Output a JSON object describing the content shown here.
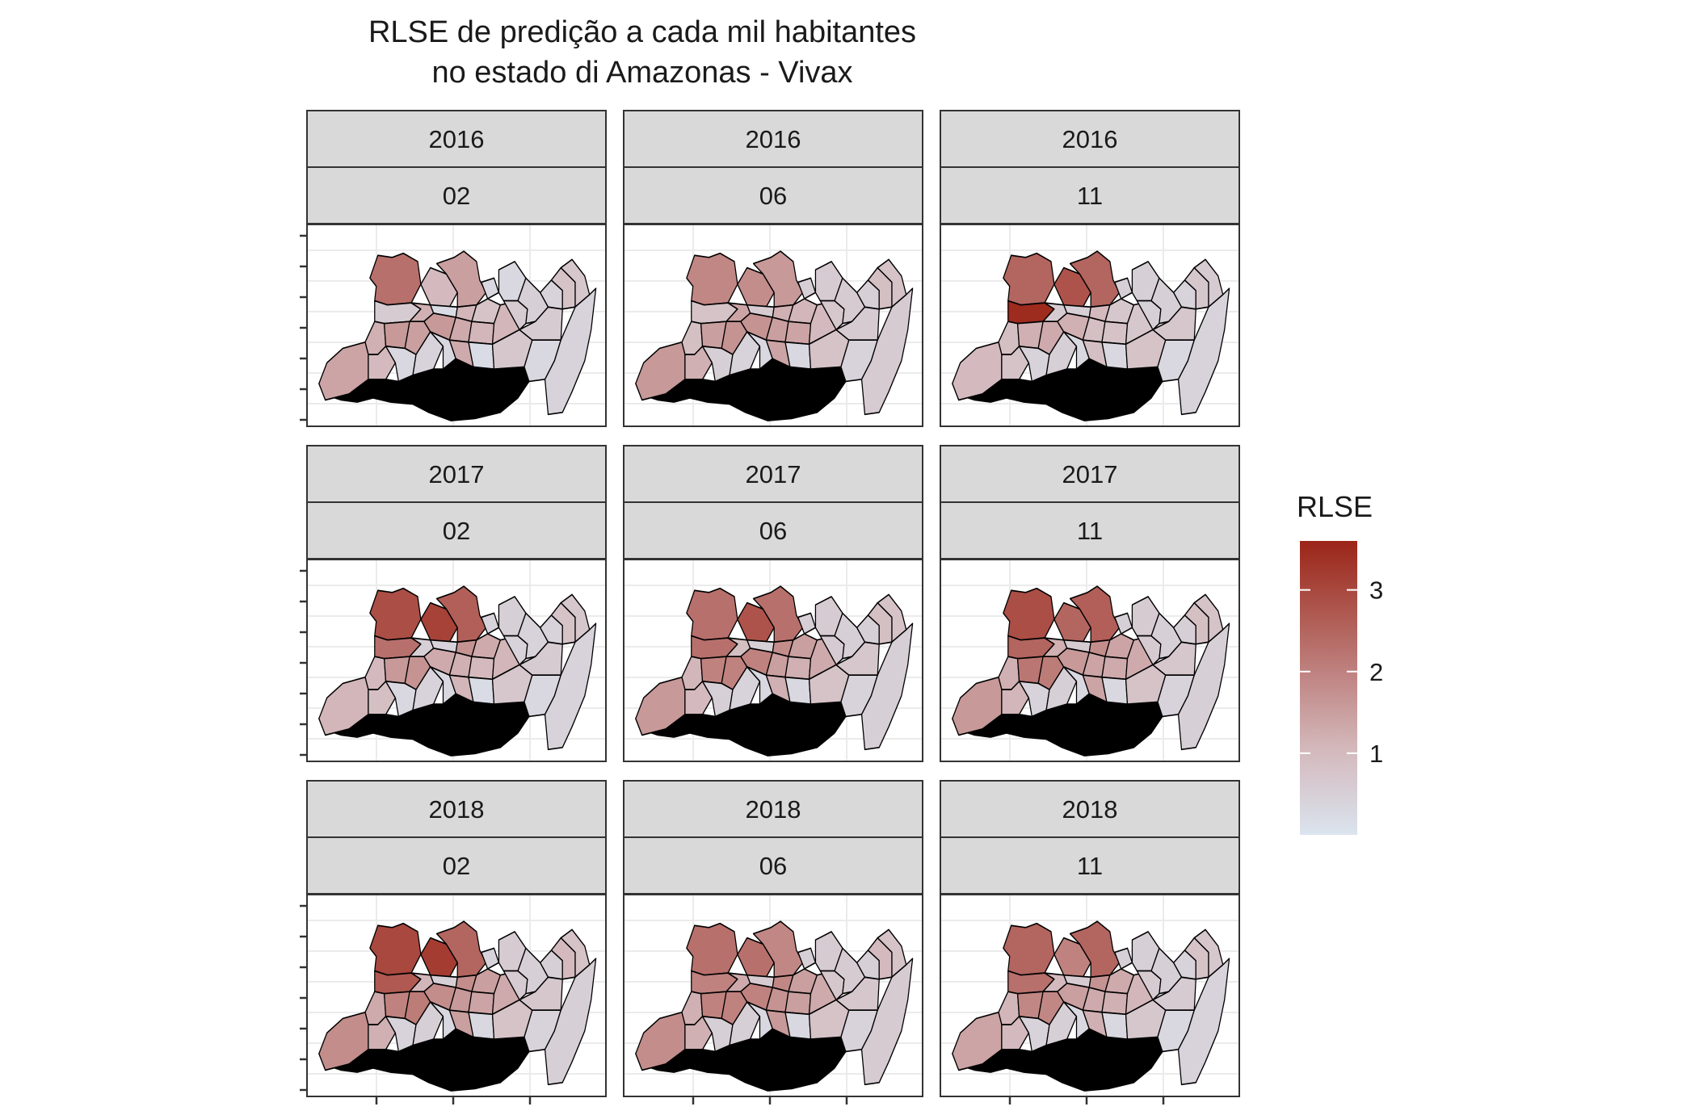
{
  "title_line1": "RLSE de predição a cada mil habitantes",
  "title_line2": "no estado di Amazonas - Vivax",
  "legend": {
    "title": "RLSE",
    "ticks": [
      {
        "value": 3,
        "label": "3"
      },
      {
        "value": 2,
        "label": "2"
      },
      {
        "value": 1,
        "label": "1"
      }
    ],
    "min": 0.0,
    "max": 3.6,
    "color_low": "#dbe4ef",
    "color_mid": "#d3b7ba",
    "color_high": "#9b2518"
  },
  "colors": {
    "strip_fill": "#d9d9d9",
    "strip_border": "#333333",
    "panel_border": "#333333",
    "grid": "#ebebeb",
    "region_border": "#000000"
  },
  "panels": [
    {
      "year": "2016",
      "month": "02",
      "values": [
        2.3,
        1.0,
        1.5,
        0.3,
        0.3,
        0.6,
        1.2,
        0.2,
        1.1,
        0.8,
        1.2,
        1.6,
        1.5,
        1.6,
        1.3,
        1.1,
        1.1,
        0.6,
        0.5,
        1.4,
        1.0,
        0.3,
        0.4,
        0.3,
        1.3,
        0.2,
        0.7,
        0.6,
        0.4,
        0.8,
        0.7,
        0.3,
        0.4
      ]
    },
    {
      "year": "2016",
      "month": "06",
      "values": [
        1.9,
        1.8,
        1.6,
        0.5,
        0.6,
        0.8,
        1.4,
        0.6,
        1.2,
        1.1,
        0.9,
        1.5,
        1.7,
        1.7,
        1.5,
        1.4,
        1.0,
        0.7,
        0.6,
        1.6,
        1.2,
        0.5,
        0.4,
        0.3,
        1.4,
        0.3,
        0.8,
        0.6,
        0.5,
        0.9,
        0.8,
        0.4,
        0.6
      ]
    },
    {
      "year": "2016",
      "month": "11",
      "values": [
        2.5,
        2.8,
        2.5,
        0.5,
        0.5,
        3.5,
        0.6,
        0.5,
        1.0,
        0.7,
        0.9,
        1.2,
        1.3,
        1.2,
        0.9,
        0.8,
        0.7,
        0.5,
        0.5,
        1.0,
        0.8,
        0.4,
        0.5,
        0.3,
        0.9,
        0.3,
        0.8,
        0.7,
        0.4,
        0.7,
        0.6,
        0.3,
        0.4
      ]
    },
    {
      "year": "2017",
      "month": "02",
      "values": [
        2.9,
        3.1,
        2.6,
        0.4,
        0.5,
        2.3,
        0.5,
        0.4,
        1.7,
        1.3,
        1.0,
        1.6,
        1.7,
        1.3,
        1.2,
        1.0,
        1.1,
        0.4,
        0.4,
        1.1,
        0.9,
        0.3,
        0.4,
        0.3,
        1.1,
        0.2,
        0.7,
        0.6,
        0.4,
        0.8,
        0.7,
        0.3,
        0.4
      ]
    },
    {
      "year": "2017",
      "month": "06",
      "values": [
        2.3,
        2.8,
        2.3,
        0.5,
        0.6,
        2.3,
        0.9,
        0.5,
        1.8,
        1.5,
        1.1,
        2.0,
        2.0,
        2.0,
        1.5,
        1.2,
        1.3,
        0.6,
        0.5,
        1.6,
        1.0,
        0.5,
        0.4,
        0.3,
        1.2,
        0.3,
        0.8,
        0.7,
        0.5,
        0.9,
        0.8,
        0.4,
        0.5
      ]
    },
    {
      "year": "2017",
      "month": "11",
      "values": [
        2.9,
        2.5,
        2.6,
        0.5,
        0.6,
        2.5,
        1.2,
        0.6,
        1.8,
        1.4,
        1.2,
        2.2,
        2.1,
        1.6,
        1.4,
        1.3,
        1.3,
        0.6,
        0.5,
        1.6,
        1.1,
        0.4,
        0.5,
        0.3,
        1.4,
        0.3,
        0.8,
        0.7,
        0.5,
        0.9,
        0.8,
        0.4,
        0.5
      ]
    },
    {
      "year": "2018",
      "month": "02",
      "values": [
        3.0,
        3.2,
        2.5,
        0.4,
        0.6,
        2.7,
        1.1,
        0.5,
        1.8,
        1.5,
        1.3,
        2.0,
        2.1,
        1.8,
        1.6,
        1.4,
        1.3,
        0.6,
        0.5,
        1.8,
        1.2,
        0.4,
        0.5,
        0.3,
        1.5,
        0.3,
        0.8,
        0.7,
        0.5,
        1.0,
        0.8,
        0.4,
        0.5
      ]
    },
    {
      "year": "2018",
      "month": "06",
      "values": [
        2.3,
        2.3,
        1.9,
        0.5,
        0.6,
        2.0,
        1.3,
        0.6,
        1.9,
        1.5,
        1.2,
        2.0,
        2.0,
        2.0,
        1.7,
        1.5,
        1.3,
        0.7,
        0.6,
        1.8,
        1.2,
        0.5,
        0.5,
        0.3,
        1.6,
        0.3,
        0.8,
        0.7,
        0.5,
        1.0,
        0.8,
        0.4,
        0.6
      ]
    },
    {
      "year": "2018",
      "month": "11",
      "values": [
        2.5,
        2.0,
        2.5,
        0.5,
        0.5,
        2.3,
        1.0,
        0.6,
        1.7,
        1.3,
        1.1,
        1.9,
        1.9,
        1.5,
        1.3,
        1.2,
        1.1,
        0.6,
        0.5,
        1.4,
        1.0,
        0.4,
        0.5,
        0.3,
        1.2,
        0.3,
        0.7,
        0.6,
        0.4,
        0.8,
        0.7,
        0.3,
        0.4
      ]
    }
  ]
}
